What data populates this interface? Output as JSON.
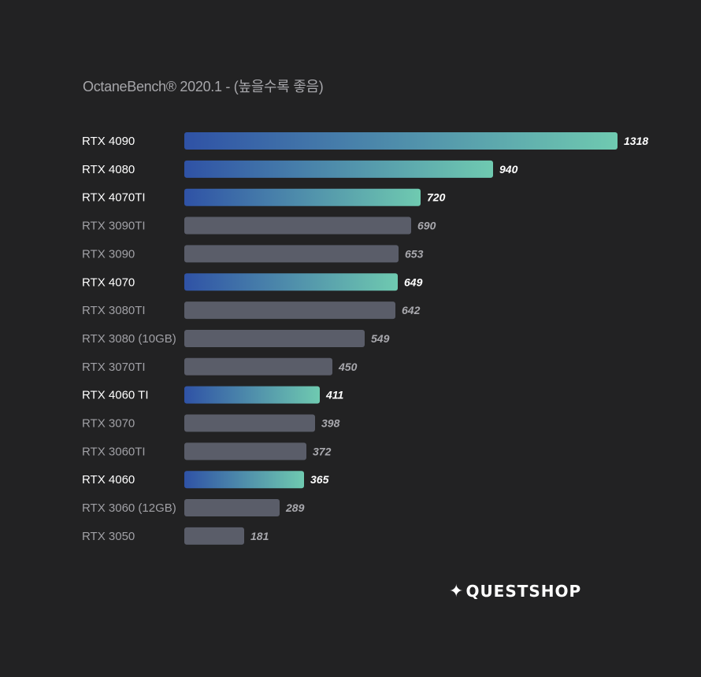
{
  "title": "OctaneBench® 2020.1 - (높을수록 좋음)",
  "brand": {
    "icon": "✦",
    "name": "QUESTSHOP"
  },
  "colors": {
    "background": "#222223",
    "highlight_gradient_start": "#2f52a6",
    "highlight_gradient_end": "#6fcab0",
    "muted_bar": "#5a5d69",
    "highlight_label": "#ffffff",
    "muted_label": "#a0a0a5",
    "muted_value": "#a8a8ad"
  },
  "chart_data": {
    "type": "bar",
    "orientation": "horizontal",
    "title": "OctaneBench® 2020.1 - (높을수록 좋음)",
    "xlim": [
      0,
      1318
    ],
    "grid": false,
    "categories": [
      "RTX 4090",
      "RTX 4080",
      "RTX 4070TI",
      "RTX 3090TI",
      "RTX 3090",
      "RTX 4070",
      "RTX 3080TI",
      "RTX 3080 (10GB)",
      "RTX 3070TI",
      "RTX 4060 TI",
      "RTX 3070",
      "RTX 3060TI",
      "RTX 4060",
      "RTX 3060 (12GB)",
      "RTX 3050"
    ],
    "values": [
      1318,
      940,
      720,
      690,
      653,
      649,
      642,
      549,
      450,
      411,
      398,
      372,
      365,
      289,
      181
    ],
    "highlighted": [
      true,
      true,
      true,
      false,
      false,
      true,
      false,
      false,
      false,
      true,
      false,
      false,
      true,
      false,
      false
    ]
  }
}
